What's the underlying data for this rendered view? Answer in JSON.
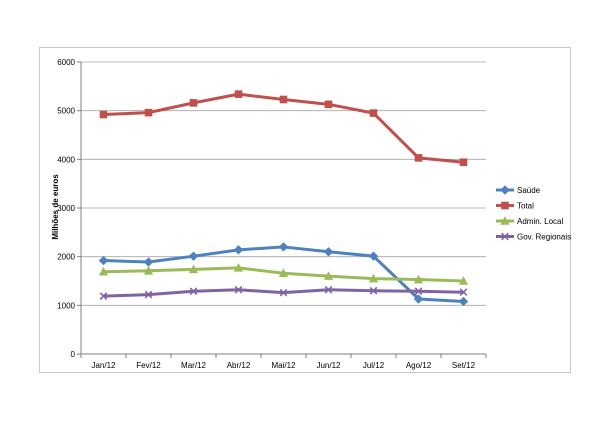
{
  "chart_data": {
    "type": "line",
    "title": "",
    "xlabel": "",
    "ylabel": "Milhões de euros",
    "ylim": [
      0,
      6000
    ],
    "yticks": [
      0,
      1000,
      2000,
      3000,
      4000,
      5000,
      6000
    ],
    "grid": true,
    "legend_position": "right",
    "categories": [
      "Jan/12",
      "Fev/12",
      "Mar/12",
      "Abr/12",
      "Mai/12",
      "Jun/12",
      "Jul/12",
      "Ago/12",
      "Set/12"
    ],
    "series": [
      {
        "name": "Saúde",
        "color": "#4f81bd",
        "marker": "diamond",
        "values": [
          1920,
          1890,
          2010,
          2140,
          2200,
          2100,
          2010,
          1130,
          1080
        ]
      },
      {
        "name": "Total",
        "color": "#c0504d",
        "marker": "square",
        "values": [
          4920,
          4960,
          5160,
          5340,
          5230,
          5130,
          4950,
          4030,
          3940
        ]
      },
      {
        "name": "Admin. Local",
        "color": "#9bbb59",
        "marker": "triangle",
        "values": [
          1690,
          1710,
          1740,
          1770,
          1660,
          1600,
          1550,
          1530,
          1500
        ]
      },
      {
        "name": "Gov. Regionais",
        "color": "#8064a2",
        "marker": "x",
        "values": [
          1190,
          1220,
          1290,
          1320,
          1260,
          1320,
          1300,
          1290,
          1270
        ]
      }
    ]
  }
}
